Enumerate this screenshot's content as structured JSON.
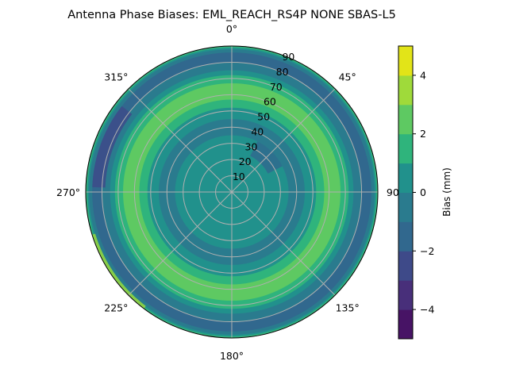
{
  "chart_data": {
    "type": "contour",
    "projection": "polar",
    "title": "Antenna Phase Biases: EML_REACH_RS4P  NONE SBAS-L5",
    "theta_zero": "top",
    "theta_direction": "clockwise",
    "theta_ticks": [
      "0°",
      "45°",
      "90°",
      "135°",
      "180°",
      "225°",
      "270°",
      "315°"
    ],
    "r_ticks": [
      "10",
      "20",
      "30",
      "40",
      "50",
      "60",
      "70",
      "80",
      "90"
    ],
    "r_range": [
      0,
      90
    ],
    "grid": true,
    "colormap": "viridis",
    "levels": [
      -5,
      -4,
      -3,
      -2,
      -1,
      0,
      1,
      2,
      3,
      4,
      5
    ],
    "level_colors": [
      "#471365",
      "#482f7a",
      "#3e4a89",
      "#31688e",
      "#2a7b8e",
      "#21918c",
      "#2fb47c",
      "#5ec962",
      "#9fda3a",
      "#e2e418"
    ],
    "colorbar": {
      "label": "Bias (mm)",
      "ticks": [
        "−4",
        "−2",
        "0",
        "2",
        "4"
      ],
      "tick_values": [
        -4,
        -2,
        0,
        2,
        4
      ],
      "range": [
        -5,
        5
      ]
    },
    "radial_profile_mm": [
      {
        "r": [
          0,
          35
        ],
        "bias": 0.5
      },
      {
        "r": [
          35,
          45
        ],
        "bias": -0.5
      },
      {
        "r": [
          45,
          52
        ],
        "bias": 0.5
      },
      {
        "r": [
          52,
          57
        ],
        "bias": 1.5
      },
      {
        "r": [
          57,
          67
        ],
        "bias": 2.5
      },
      {
        "r": [
          67,
          72
        ],
        "bias": 1.5
      },
      {
        "r": [
          72,
          75
        ],
        "bias": 0.5
      },
      {
        "r": [
          75,
          80
        ],
        "bias": -0.5
      },
      {
        "r": [
          80,
          86
        ],
        "bias": -1.5
      },
      {
        "r": [
          86,
          88
        ],
        "bias": -0.5
      },
      {
        "r": [
          88,
          89
        ],
        "bias": 0.5
      },
      {
        "r": [
          89,
          90
        ],
        "bias": 1.5
      }
    ],
    "local_features": [
      {
        "theta": 290,
        "r": [
          78,
          86
        ],
        "bias": -2.5
      },
      {
        "theta": 235,
        "r": [
          88,
          90
        ],
        "bias": 3.5
      },
      {
        "theta": 45,
        "r": [
          25,
          35
        ],
        "bias": -1.5
      }
    ]
  }
}
